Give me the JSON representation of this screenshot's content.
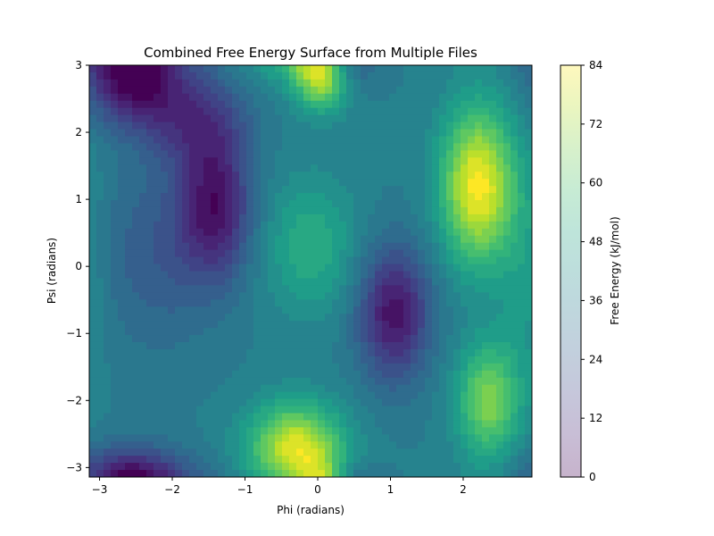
{
  "chart_data": {
    "type": "heatmap",
    "title": "Combined Free Energy Surface from Multiple Files",
    "xlabel": "Phi (radians)",
    "ylabel": "Psi (radians)",
    "xlim": [
      -3.1416,
      2.9452
    ],
    "ylim": [
      -3.1416,
      3.0
    ],
    "x_ticks": [
      -3,
      -2,
      -1,
      0,
      1,
      2
    ],
    "y_ticks": [
      -3,
      -2,
      -1,
      0,
      1,
      2,
      3
    ],
    "x_tick_labels": [
      "−3",
      "−2",
      "−1",
      "0",
      "1",
      "2"
    ],
    "y_tick_labels": [
      "−3",
      "−2",
      "−1",
      "0",
      "1",
      "2",
      "3"
    ],
    "colormap": "viridis",
    "colorbar": {
      "label": "Free Energy (kJ/mol)",
      "range": [
        0,
        84
      ],
      "ticks": [
        0,
        12,
        24,
        36,
        48,
        60,
        72,
        84
      ],
      "tick_labels": [
        "0",
        "12",
        "24",
        "36",
        "48",
        "60",
        "72",
        "84"
      ]
    },
    "surface": {
      "base": 36,
      "features": [
        {
          "kind": "minimum",
          "phi": -2.55,
          "psi": 2.75,
          "depth": 32,
          "sigma_phi": 0.45,
          "sigma_psi": 0.45
        },
        {
          "kind": "minimum",
          "phi": -1.4,
          "psi": 0.9,
          "depth": 30,
          "sigma_phi": 0.35,
          "sigma_psi": 0.75
        },
        {
          "kind": "minimum",
          "phi": -1.7,
          "psi": 2.2,
          "depth": 20,
          "sigma_phi": 0.5,
          "sigma_psi": 0.5
        },
        {
          "kind": "minimum",
          "phi": -2.2,
          "psi": 0.2,
          "depth": 12,
          "sigma_phi": 0.6,
          "sigma_psi": 1.0
        },
        {
          "kind": "minimum",
          "phi": 1.05,
          "psi": -0.7,
          "depth": 32,
          "sigma_phi": 0.35,
          "sigma_psi": 0.7
        },
        {
          "kind": "minimum",
          "phi": -2.6,
          "psi": -3.1,
          "depth": 16,
          "sigma_phi": 0.6,
          "sigma_psi": 0.3
        },
        {
          "kind": "minimum",
          "phi": 0.4,
          "psi": 3.0,
          "depth": 14,
          "sigma_phi": 0.3,
          "sigma_psi": 0.25
        },
        {
          "kind": "maximum",
          "phi": 2.2,
          "psi": 1.2,
          "height": 48,
          "sigma_phi": 0.35,
          "sigma_psi": 0.8
        },
        {
          "kind": "maximum",
          "phi": 2.35,
          "psi": -2.0,
          "height": 32,
          "sigma_phi": 0.3,
          "sigma_psi": 0.6
        },
        {
          "kind": "maximum",
          "phi": -0.3,
          "psi": -2.7,
          "height": 44,
          "sigma_phi": 0.45,
          "sigma_psi": 0.45
        },
        {
          "kind": "maximum",
          "phi": 0.05,
          "psi": 2.85,
          "height": 40,
          "sigma_phi": 0.25,
          "sigma_psi": 0.35
        },
        {
          "kind": "maximum",
          "phi": -0.1,
          "psi": 0.3,
          "height": 16,
          "sigma_phi": 0.45,
          "sigma_psi": 0.7
        },
        {
          "kind": "maximum",
          "phi": 2.9,
          "psi": 0.0,
          "height": 10,
          "sigma_phi": 0.3,
          "sigma_psi": 1.2
        }
      ]
    }
  }
}
